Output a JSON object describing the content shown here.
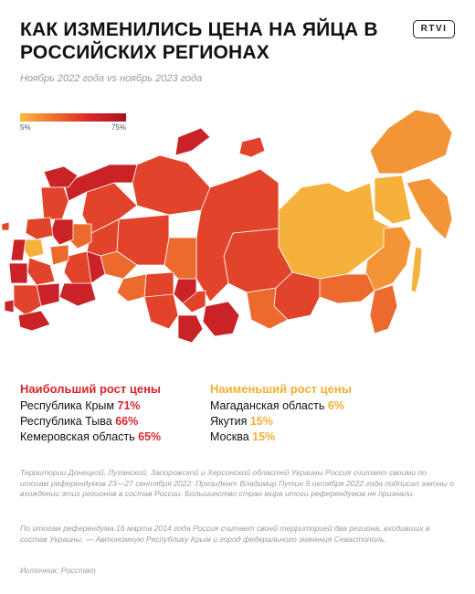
{
  "header": {
    "title": "КАК ИЗМЕНИЛИСЬ ЦЕНА НА ЯЙЦА В РОССИЙСКИХ РЕГИОНАХ",
    "logo": "RTVI",
    "subtitle": "Ноябрь 2022 года vs ноябрь 2023 года"
  },
  "legend": {
    "min_label": "5%",
    "max_label": "75%",
    "colors": [
      "#f7b940",
      "#ef6a2e",
      "#d9262a",
      "#a5161e"
    ]
  },
  "map": {
    "colors": {
      "lowest": "#f5b13c",
      "low": "#f39537",
      "mid": "#ec6a2e",
      "high": "#e2432b",
      "highest": "#c92227"
    }
  },
  "highest": {
    "heading": "Наибольший рост цены",
    "items": [
      {
        "region": "Республика Крым",
        "value": "71%"
      },
      {
        "region": "Республика Тыва",
        "value": "66%"
      },
      {
        "region": "Кемеровская область",
        "value": "65%"
      }
    ]
  },
  "lowest": {
    "heading": "Наименьший рост цены",
    "items": [
      {
        "region": "Магаданская область",
        "value": "6%"
      },
      {
        "region": "Якутия",
        "value": "15%"
      },
      {
        "region": "Москва",
        "value": "15%"
      }
    ]
  },
  "notes": {
    "note1": "Территории Донецкой, Луганской, Запорожской и Херсонской областей Украины Россия считает своими по итогам референдумов 23—27 сентября 2022. Президент Владимир Путин 5 октября 2022 года подписал законы о вхождении этих регионов в состав России. Большинство стран мира итоги референдумов не признали.",
    "note2": "По итогам референдума 16 марта 2014 года Россия считает своей территорией два региона, входивших в состав Украины, — Автономную Республику Крым и город федерального значения Севастополь.",
    "source": "Источник: Росстат"
  }
}
